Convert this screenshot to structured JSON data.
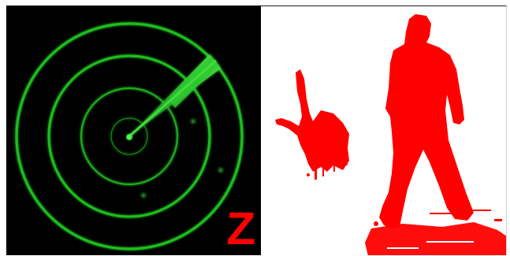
{
  "radar": {
    "badge_letter": "Z",
    "colors": {
      "background": "#000000",
      "ring": "#1fbf1f",
      "sweep": "#33d633",
      "blip": "#2a9a2a",
      "badge": "#ff0000"
    },
    "icons": [
      "radar-icon",
      "radar-sweep-icon",
      "radar-blip-icon",
      "zombie-letter-z-icon"
    ]
  },
  "silhouette": {
    "colors": {
      "background": "#ffffff",
      "figure": "#ff0000"
    },
    "icons": [
      "bloody-handprint-icon",
      "zombie-silhouette-icon",
      "blood-splatter-icon"
    ]
  }
}
